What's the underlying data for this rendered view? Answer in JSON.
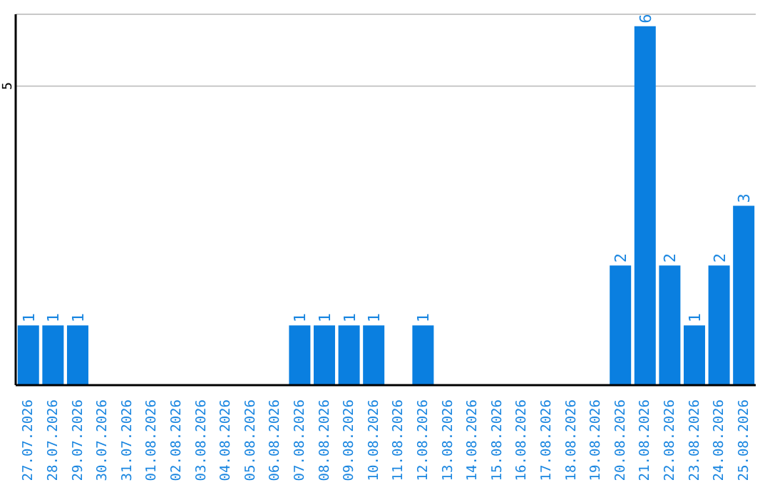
{
  "chart_data": {
    "type": "bar",
    "categories": [
      "27.07.2026",
      "28.07.2026",
      "29.07.2026",
      "30.07.2026",
      "31.07.2026",
      "01.08.2026",
      "02.08.2026",
      "03.08.2026",
      "04.08.2026",
      "05.08.2026",
      "06.08.2026",
      "07.08.2026",
      "08.08.2026",
      "09.08.2026",
      "10.08.2026",
      "11.08.2026",
      "12.08.2026",
      "13.08.2026",
      "14.08.2026",
      "15.08.2026",
      "16.08.2026",
      "17.08.2026",
      "18.08.2026",
      "19.08.2026",
      "20.08.2026",
      "21.08.2026",
      "22.08.2026",
      "23.08.2026",
      "24.08.2026",
      "25.08.2026"
    ],
    "values": [
      1,
      1,
      1,
      0,
      0,
      0,
      0,
      0,
      0,
      0,
      0,
      1,
      1,
      1,
      1,
      0,
      1,
      0,
      0,
      0,
      0,
      0,
      0,
      0,
      2,
      6,
      2,
      1,
      2,
      3
    ],
    "value_labels": [
      "1",
      "1",
      "1",
      null,
      null,
      null,
      null,
      null,
      null,
      null,
      null,
      "1",
      "1",
      "1",
      "1",
      null,
      "1",
      null,
      null,
      null,
      null,
      null,
      null,
      null,
      "2",
      "6",
      "2",
      "1",
      "2",
      "3"
    ],
    "color": "#0a7fe0",
    "ylim": [
      0,
      6.2
    ],
    "yticks": [
      5
    ],
    "grid": "y"
  }
}
